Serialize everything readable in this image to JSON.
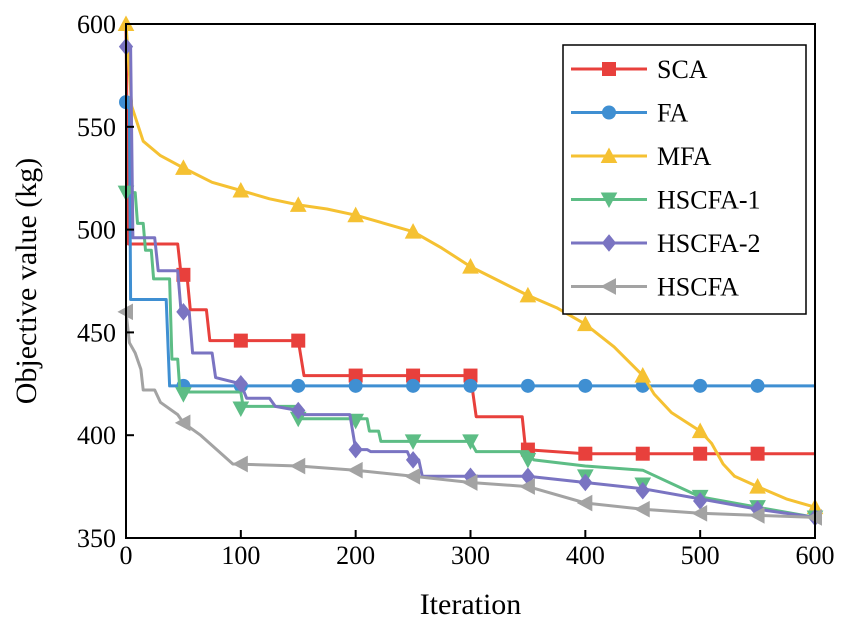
{
  "chart_data": {
    "type": "line",
    "title": "",
    "xlabel": "Iteration",
    "ylabel": "Objective value (kg)",
    "xlim": [
      0,
      600
    ],
    "ylim": [
      350,
      600
    ],
    "xticks": [
      0,
      100,
      200,
      300,
      400,
      500,
      600
    ],
    "yticks": [
      350,
      400,
      450,
      500,
      550,
      600
    ],
    "legend_position": "top-right",
    "series": [
      {
        "name": "SCA",
        "color": "#e8403c",
        "marker": "square",
        "points": [
          [
            0,
            600
          ],
          [
            2,
            493
          ],
          [
            10,
            493
          ],
          [
            45,
            493
          ],
          [
            48,
            478
          ],
          [
            53,
            478
          ],
          [
            56,
            461
          ],
          [
            70,
            461
          ],
          [
            73,
            446
          ],
          [
            100,
            446
          ],
          [
            150,
            446
          ],
          [
            155,
            429
          ],
          [
            200,
            429
          ],
          [
            250,
            429
          ],
          [
            300,
            429
          ],
          [
            305,
            409
          ],
          [
            345,
            409
          ],
          [
            348,
            393
          ],
          [
            400,
            391
          ],
          [
            450,
            391
          ],
          [
            500,
            391
          ],
          [
            550,
            391
          ],
          [
            600,
            391
          ]
        ],
        "markers": [
          [
            50,
            478
          ],
          [
            100,
            446
          ],
          [
            150,
            446
          ],
          [
            200,
            429
          ],
          [
            250,
            429
          ],
          [
            300,
            429
          ],
          [
            350,
            393
          ],
          [
            400,
            391
          ],
          [
            450,
            391
          ],
          [
            500,
            391
          ],
          [
            550,
            391
          ]
        ]
      },
      {
        "name": "FA",
        "color": "#3f8fd2",
        "marker": "circle",
        "points": [
          [
            0,
            562
          ],
          [
            3,
            562
          ],
          [
            4,
            466
          ],
          [
            35,
            466
          ],
          [
            38,
            424
          ],
          [
            100,
            424
          ],
          [
            200,
            424
          ],
          [
            300,
            424
          ],
          [
            400,
            424
          ],
          [
            500,
            424
          ],
          [
            600,
            424
          ]
        ],
        "markers": [
          [
            0,
            562
          ],
          [
            50,
            424
          ],
          [
            100,
            424
          ],
          [
            150,
            424
          ],
          [
            200,
            424
          ],
          [
            250,
            424
          ],
          [
            300,
            424
          ],
          [
            350,
            424
          ],
          [
            400,
            424
          ],
          [
            450,
            424
          ],
          [
            500,
            424
          ],
          [
            550,
            424
          ]
        ]
      },
      {
        "name": "MFA",
        "color": "#f5c132",
        "marker": "triangle-up",
        "points": [
          [
            0,
            600
          ],
          [
            5,
            560
          ],
          [
            15,
            543
          ],
          [
            30,
            536
          ],
          [
            50,
            530
          ],
          [
            75,
            523
          ],
          [
            100,
            519
          ],
          [
            125,
            515
          ],
          [
            150,
            512
          ],
          [
            175,
            510
          ],
          [
            200,
            507
          ],
          [
            225,
            503
          ],
          [
            250,
            499
          ],
          [
            275,
            491
          ],
          [
            300,
            482
          ],
          [
            325,
            475
          ],
          [
            350,
            468
          ],
          [
            375,
            462
          ],
          [
            400,
            454
          ],
          [
            425,
            443
          ],
          [
            450,
            429
          ],
          [
            460,
            420
          ],
          [
            475,
            411
          ],
          [
            500,
            402
          ],
          [
            510,
            396
          ],
          [
            520,
            386
          ],
          [
            530,
            380
          ],
          [
            550,
            375
          ],
          [
            575,
            369
          ],
          [
            600,
            365
          ]
        ],
        "markers": [
          [
            0,
            600
          ],
          [
            50,
            530
          ],
          [
            100,
            519
          ],
          [
            150,
            512
          ],
          [
            200,
            507
          ],
          [
            250,
            499
          ],
          [
            300,
            482
          ],
          [
            350,
            468
          ],
          [
            400,
            454
          ],
          [
            450,
            429
          ],
          [
            500,
            402
          ],
          [
            550,
            375
          ],
          [
            600,
            365
          ]
        ]
      },
      {
        "name": "HSCFA-1",
        "color": "#5dbd85",
        "marker": "triangle-down",
        "points": [
          [
            0,
            518
          ],
          [
            8,
            518
          ],
          [
            10,
            503
          ],
          [
            15,
            503
          ],
          [
            17,
            490
          ],
          [
            22,
            490
          ],
          [
            24,
            476
          ],
          [
            38,
            476
          ],
          [
            40,
            437
          ],
          [
            45,
            437
          ],
          [
            47,
            421
          ],
          [
            100,
            421
          ],
          [
            102,
            414
          ],
          [
            150,
            414
          ],
          [
            152,
            408
          ],
          [
            200,
            408
          ],
          [
            210,
            408
          ],
          [
            212,
            402
          ],
          [
            220,
            402
          ],
          [
            222,
            397
          ],
          [
            300,
            397
          ],
          [
            305,
            392
          ],
          [
            350,
            392
          ],
          [
            355,
            388
          ],
          [
            400,
            385
          ],
          [
            450,
            383
          ],
          [
            500,
            370
          ],
          [
            550,
            365
          ],
          [
            600,
            360
          ]
        ],
        "markers": [
          [
            0,
            518
          ],
          [
            50,
            420
          ],
          [
            100,
            413
          ],
          [
            150,
            408
          ],
          [
            200,
            407
          ],
          [
            250,
            397
          ],
          [
            300,
            397
          ],
          [
            350,
            388
          ],
          [
            400,
            380
          ],
          [
            450,
            376
          ],
          [
            500,
            370
          ],
          [
            550,
            365
          ],
          [
            600,
            360
          ]
        ]
      },
      {
        "name": "HSCFA-2",
        "color": "#7a74c2",
        "marker": "diamond",
        "points": [
          [
            0,
            589
          ],
          [
            4,
            589
          ],
          [
            6,
            496
          ],
          [
            25,
            496
          ],
          [
            28,
            480
          ],
          [
            45,
            480
          ],
          [
            48,
            460
          ],
          [
            55,
            460
          ],
          [
            58,
            440
          ],
          [
            75,
            440
          ],
          [
            78,
            428
          ],
          [
            100,
            425
          ],
          [
            105,
            418
          ],
          [
            125,
            418
          ],
          [
            130,
            414
          ],
          [
            150,
            412
          ],
          [
            155,
            410
          ],
          [
            195,
            410
          ],
          [
            200,
            393
          ],
          [
            210,
            393
          ],
          [
            213,
            392
          ],
          [
            245,
            392
          ],
          [
            248,
            388
          ],
          [
            255,
            388
          ],
          [
            258,
            380
          ],
          [
            300,
            380
          ],
          [
            350,
            380
          ],
          [
            400,
            377
          ],
          [
            450,
            374
          ],
          [
            500,
            369
          ],
          [
            550,
            364
          ],
          [
            600,
            360
          ]
        ],
        "markers": [
          [
            0,
            589
          ],
          [
            50,
            460
          ],
          [
            100,
            425
          ],
          [
            150,
            412
          ],
          [
            200,
            393
          ],
          [
            250,
            388
          ],
          [
            300,
            380
          ],
          [
            350,
            380
          ],
          [
            400,
            377
          ],
          [
            450,
            373
          ],
          [
            500,
            368
          ],
          [
            550,
            364
          ],
          [
            600,
            360
          ]
        ]
      },
      {
        "name": "HSCFA",
        "color": "#a3a3a3",
        "marker": "triangle-left",
        "points": [
          [
            0,
            460
          ],
          [
            3,
            445
          ],
          [
            8,
            440
          ],
          [
            13,
            432
          ],
          [
            15,
            422
          ],
          [
            25,
            422
          ],
          [
            30,
            416
          ],
          [
            45,
            410
          ],
          [
            50,
            406
          ],
          [
            65,
            400
          ],
          [
            75,
            395
          ],
          [
            85,
            390
          ],
          [
            93,
            386
          ],
          [
            150,
            385
          ],
          [
            200,
            383
          ],
          [
            250,
            380
          ],
          [
            300,
            377
          ],
          [
            350,
            375
          ],
          [
            400,
            367
          ],
          [
            450,
            364
          ],
          [
            500,
            362
          ],
          [
            550,
            361
          ],
          [
            600,
            360
          ]
        ],
        "markers": [
          [
            0,
            460
          ],
          [
            50,
            406
          ],
          [
            100,
            386
          ],
          [
            150,
            385
          ],
          [
            200,
            383
          ],
          [
            250,
            380
          ],
          [
            300,
            377
          ],
          [
            350,
            375
          ],
          [
            400,
            367
          ],
          [
            450,
            364
          ],
          [
            500,
            362
          ],
          [
            550,
            361
          ],
          [
            600,
            360
          ]
        ]
      }
    ]
  }
}
